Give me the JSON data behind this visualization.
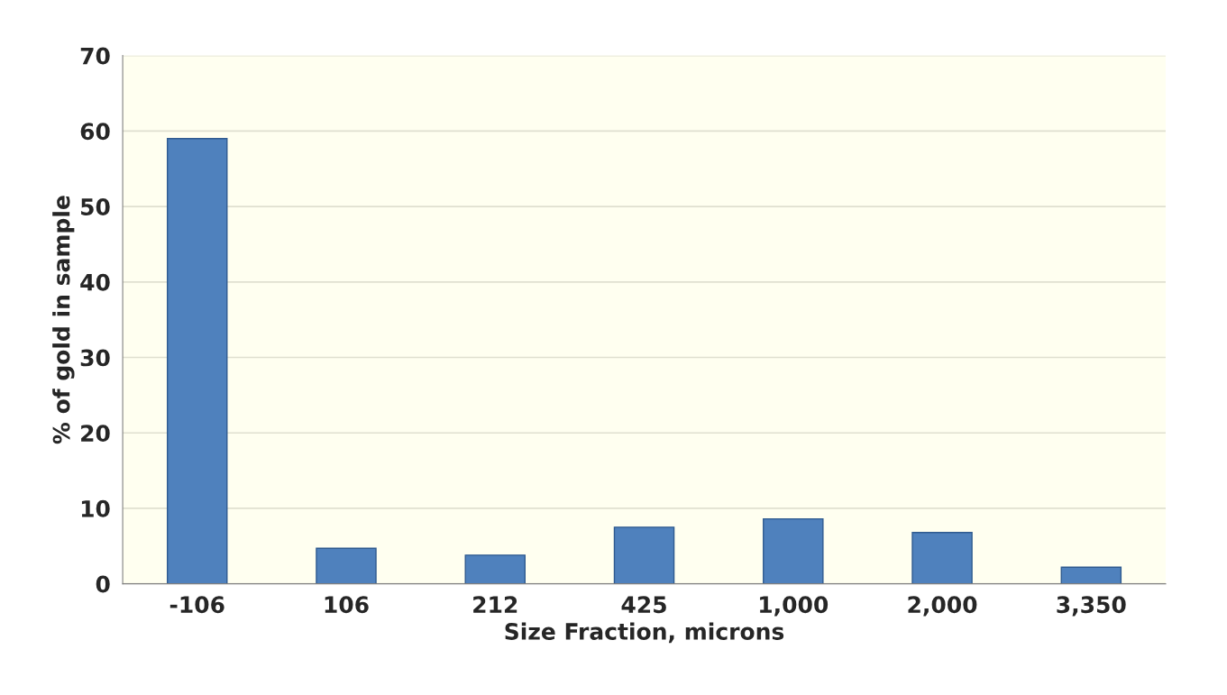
{
  "chart_data": {
    "type": "bar",
    "xlabel": "Size Fraction, microns",
    "ylabel": "% of gold in sample",
    "categories": [
      "-106",
      "106",
      "212",
      "425",
      "1,000",
      "2,000",
      "3,350"
    ],
    "values": [
      59,
      4.7,
      3.8,
      7.5,
      8.6,
      6.8,
      2.2
    ],
    "color": "#4f81bd",
    "ylim": [
      0,
      70
    ],
    "yticks": [
      0,
      10,
      20,
      30,
      40,
      50,
      60,
      70
    ],
    "grid": "y"
  }
}
